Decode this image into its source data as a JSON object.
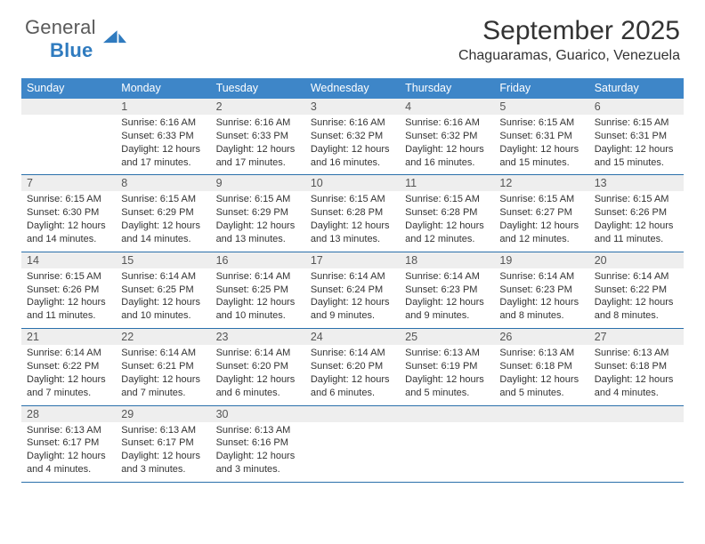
{
  "brand": {
    "word1": "General",
    "word2": "Blue"
  },
  "title": "September 2025",
  "location": "Chaguaramas, Guarico, Venezuela",
  "colors": {
    "header_blue": "#3e86c8",
    "row_separator": "#2a6fab",
    "daynum_bg": "#eeeeee",
    "page_bg": "#ffffff",
    "text": "#222222"
  },
  "typography": {
    "title_fontsize_pt": 22,
    "location_fontsize_pt": 12,
    "header_fontsize_pt": 9.5,
    "body_fontsize_pt": 8.2,
    "font_family": "Arial"
  },
  "layout": {
    "columns": 7,
    "weeks": 5,
    "aspect": "792x612"
  },
  "weekdays": [
    "Sunday",
    "Monday",
    "Tuesday",
    "Wednesday",
    "Thursday",
    "Friday",
    "Saturday"
  ],
  "weeks": [
    [
      null,
      {
        "n": "1",
        "sr": "6:16 AM",
        "ss": "6:33 PM",
        "dl": "12 hours and 17 minutes."
      },
      {
        "n": "2",
        "sr": "6:16 AM",
        "ss": "6:33 PM",
        "dl": "12 hours and 17 minutes."
      },
      {
        "n": "3",
        "sr": "6:16 AM",
        "ss": "6:32 PM",
        "dl": "12 hours and 16 minutes."
      },
      {
        "n": "4",
        "sr": "6:16 AM",
        "ss": "6:32 PM",
        "dl": "12 hours and 16 minutes."
      },
      {
        "n": "5",
        "sr": "6:15 AM",
        "ss": "6:31 PM",
        "dl": "12 hours and 15 minutes."
      },
      {
        "n": "6",
        "sr": "6:15 AM",
        "ss": "6:31 PM",
        "dl": "12 hours and 15 minutes."
      }
    ],
    [
      {
        "n": "7",
        "sr": "6:15 AM",
        "ss": "6:30 PM",
        "dl": "12 hours and 14 minutes."
      },
      {
        "n": "8",
        "sr": "6:15 AM",
        "ss": "6:29 PM",
        "dl": "12 hours and 14 minutes."
      },
      {
        "n": "9",
        "sr": "6:15 AM",
        "ss": "6:29 PM",
        "dl": "12 hours and 13 minutes."
      },
      {
        "n": "10",
        "sr": "6:15 AM",
        "ss": "6:28 PM",
        "dl": "12 hours and 13 minutes."
      },
      {
        "n": "11",
        "sr": "6:15 AM",
        "ss": "6:28 PM",
        "dl": "12 hours and 12 minutes."
      },
      {
        "n": "12",
        "sr": "6:15 AM",
        "ss": "6:27 PM",
        "dl": "12 hours and 12 minutes."
      },
      {
        "n": "13",
        "sr": "6:15 AM",
        "ss": "6:26 PM",
        "dl": "12 hours and 11 minutes."
      }
    ],
    [
      {
        "n": "14",
        "sr": "6:15 AM",
        "ss": "6:26 PM",
        "dl": "12 hours and 11 minutes."
      },
      {
        "n": "15",
        "sr": "6:14 AM",
        "ss": "6:25 PM",
        "dl": "12 hours and 10 minutes."
      },
      {
        "n": "16",
        "sr": "6:14 AM",
        "ss": "6:25 PM",
        "dl": "12 hours and 10 minutes."
      },
      {
        "n": "17",
        "sr": "6:14 AM",
        "ss": "6:24 PM",
        "dl": "12 hours and 9 minutes."
      },
      {
        "n": "18",
        "sr": "6:14 AM",
        "ss": "6:23 PM",
        "dl": "12 hours and 9 minutes."
      },
      {
        "n": "19",
        "sr": "6:14 AM",
        "ss": "6:23 PM",
        "dl": "12 hours and 8 minutes."
      },
      {
        "n": "20",
        "sr": "6:14 AM",
        "ss": "6:22 PM",
        "dl": "12 hours and 8 minutes."
      }
    ],
    [
      {
        "n": "21",
        "sr": "6:14 AM",
        "ss": "6:22 PM",
        "dl": "12 hours and 7 minutes."
      },
      {
        "n": "22",
        "sr": "6:14 AM",
        "ss": "6:21 PM",
        "dl": "12 hours and 7 minutes."
      },
      {
        "n": "23",
        "sr": "6:14 AM",
        "ss": "6:20 PM",
        "dl": "12 hours and 6 minutes."
      },
      {
        "n": "24",
        "sr": "6:14 AM",
        "ss": "6:20 PM",
        "dl": "12 hours and 6 minutes."
      },
      {
        "n": "25",
        "sr": "6:13 AM",
        "ss": "6:19 PM",
        "dl": "12 hours and 5 minutes."
      },
      {
        "n": "26",
        "sr": "6:13 AM",
        "ss": "6:18 PM",
        "dl": "12 hours and 5 minutes."
      },
      {
        "n": "27",
        "sr": "6:13 AM",
        "ss": "6:18 PM",
        "dl": "12 hours and 4 minutes."
      }
    ],
    [
      {
        "n": "28",
        "sr": "6:13 AM",
        "ss": "6:17 PM",
        "dl": "12 hours and 4 minutes."
      },
      {
        "n": "29",
        "sr": "6:13 AM",
        "ss": "6:17 PM",
        "dl": "12 hours and 3 minutes."
      },
      {
        "n": "30",
        "sr": "6:13 AM",
        "ss": "6:16 PM",
        "dl": "12 hours and 3 minutes."
      },
      null,
      null,
      null,
      null
    ]
  ],
  "labels": {
    "sunrise": "Sunrise:",
    "sunset": "Sunset:",
    "daylight": "Daylight:"
  }
}
